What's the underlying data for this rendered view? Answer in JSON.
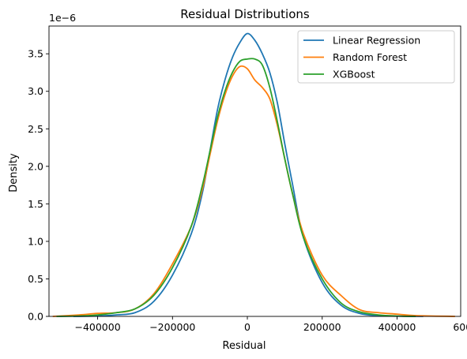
{
  "chart_data": {
    "type": "line",
    "title": "Residual Distributions",
    "xlabel": "Residual",
    "ylabel": "Density",
    "y_offset_label": "1e−6",
    "xlim": [
      -530000,
      570000
    ],
    "ylim": [
      0,
      3.87e-06
    ],
    "xticks": [
      -400000,
      -200000,
      0,
      200000,
      400000,
      600000
    ],
    "xtick_labels": [
      "−400000",
      "−200000",
      "0",
      "200000",
      "400000",
      "600000"
    ],
    "yticks": [
      0,
      5e-07,
      1e-06,
      1.5e-06,
      2e-06,
      2.5e-06,
      3e-06,
      3.5e-06
    ],
    "ytick_labels": [
      "0.0",
      "0.5",
      "1.0",
      "1.5",
      "2.0",
      "2.5",
      "3.0",
      "3.5"
    ],
    "grid": false,
    "legend_position": "top-right",
    "series": [
      {
        "name": "Linear Regression",
        "color": "#1f77b4",
        "points": [
          [
            -465000,
            0.0
          ],
          [
            -400000,
            5e-09
          ],
          [
            -350000,
            2e-08
          ],
          [
            -300000,
            5e-08
          ],
          [
            -250000,
            2e-07
          ],
          [
            -200000,
            5.5e-07
          ],
          [
            -150000,
            1.1e-06
          ],
          [
            -120000,
            1.65e-06
          ],
          [
            -100000,
            2.2e-06
          ],
          [
            -80000,
            2.75e-06
          ],
          [
            -60000,
            3.15e-06
          ],
          [
            -40000,
            3.45e-06
          ],
          [
            -20000,
            3.65e-06
          ],
          [
            0,
            3.77e-06
          ],
          [
            20000,
            3.68e-06
          ],
          [
            40000,
            3.5e-06
          ],
          [
            60000,
            3.25e-06
          ],
          [
            80000,
            2.85e-06
          ],
          [
            100000,
            2.3e-06
          ],
          [
            120000,
            1.78e-06
          ],
          [
            150000,
            1.05e-06
          ],
          [
            200000,
            4.5e-07
          ],
          [
            250000,
            1.5e-07
          ],
          [
            300000,
            4e-08
          ],
          [
            350000,
            1e-08
          ],
          [
            400000,
            3e-09
          ],
          [
            470000,
            0.0
          ]
        ]
      },
      {
        "name": "Random Forest",
        "color": "#ff7f0e",
        "points": [
          [
            -520000,
            0.0
          ],
          [
            -450000,
            2e-08
          ],
          [
            -400000,
            4e-08
          ],
          [
            -350000,
            5e-08
          ],
          [
            -300000,
            1e-07
          ],
          [
            -250000,
            3e-07
          ],
          [
            -200000,
            7e-07
          ],
          [
            -150000,
            1.2e-06
          ],
          [
            -120000,
            1.7e-06
          ],
          [
            -100000,
            2.15e-06
          ],
          [
            -80000,
            2.6e-06
          ],
          [
            -60000,
            2.95e-06
          ],
          [
            -40000,
            3.2e-06
          ],
          [
            -20000,
            3.33e-06
          ],
          [
            0,
            3.3e-06
          ],
          [
            20000,
            3.15e-06
          ],
          [
            40000,
            3.05e-06
          ],
          [
            60000,
            2.9e-06
          ],
          [
            80000,
            2.55e-06
          ],
          [
            100000,
            2.1e-06
          ],
          [
            120000,
            1.65e-06
          ],
          [
            150000,
            1.1e-06
          ],
          [
            200000,
            5.5e-07
          ],
          [
            250000,
            2.8e-07
          ],
          [
            300000,
            9e-08
          ],
          [
            350000,
            5e-08
          ],
          [
            400000,
            3e-08
          ],
          [
            450000,
            1e-08
          ],
          [
            555000,
            0.0
          ]
        ]
      },
      {
        "name": "XGBoost",
        "color": "#2ca02c",
        "points": [
          [
            -510000,
            0.0
          ],
          [
            -450000,
            5e-09
          ],
          [
            -400000,
            2e-08
          ],
          [
            -350000,
            5e-08
          ],
          [
            -300000,
            1e-07
          ],
          [
            -250000,
            2.8e-07
          ],
          [
            -200000,
            6.5e-07
          ],
          [
            -150000,
            1.2e-06
          ],
          [
            -120000,
            1.75e-06
          ],
          [
            -100000,
            2.2e-06
          ],
          [
            -80000,
            2.65e-06
          ],
          [
            -60000,
            3e-06
          ],
          [
            -40000,
            3.25e-06
          ],
          [
            -20000,
            3.4e-06
          ],
          [
            0,
            3.43e-06
          ],
          [
            20000,
            3.43e-06
          ],
          [
            40000,
            3.35e-06
          ],
          [
            60000,
            3.05e-06
          ],
          [
            80000,
            2.6e-06
          ],
          [
            100000,
            2.1e-06
          ],
          [
            120000,
            1.65e-06
          ],
          [
            150000,
            1.05e-06
          ],
          [
            200000,
            5e-07
          ],
          [
            250000,
            1.8e-07
          ],
          [
            300000,
            6e-08
          ],
          [
            350000,
            2e-08
          ],
          [
            400000,
            5e-09
          ],
          [
            450000,
            0.0
          ]
        ]
      }
    ]
  }
}
